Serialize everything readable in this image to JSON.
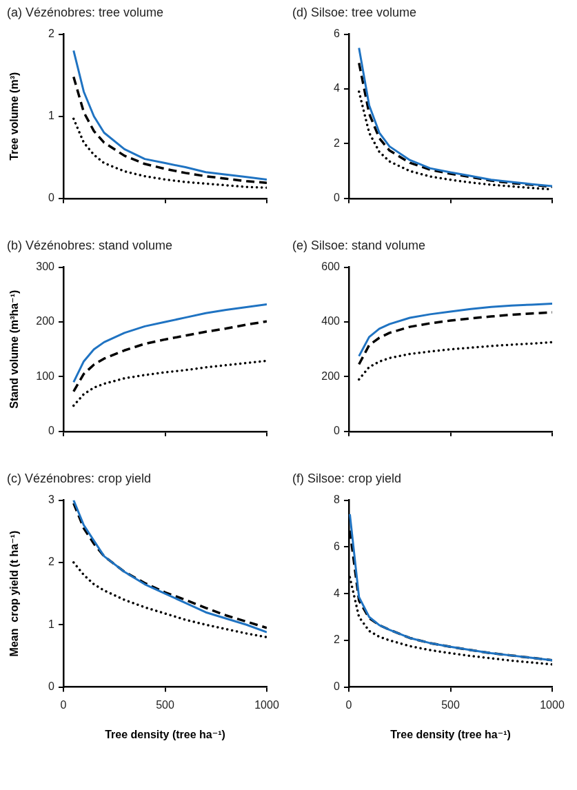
{
  "chart_data": [
    {
      "type": "line",
      "title": "(a) Vézénobres: tree volume",
      "ylabel": "Tree volume (m³)",
      "x": [
        50,
        100,
        150,
        200,
        300,
        400,
        500,
        600,
        700,
        800,
        900,
        1000
      ],
      "xlim": [
        0,
        1000
      ],
      "xticks": [
        {
          "value": 0,
          "label": null
        },
        {
          "value": 500,
          "label": null
        },
        {
          "value": 1000,
          "label": null
        }
      ],
      "ylim": [
        0,
        2
      ],
      "yticks": [
        0,
        1,
        2
      ],
      "tick_labels": "y",
      "grid": false,
      "legend": false,
      "series": [
        {
          "color": "#1f73c2",
          "line_style": "solid",
          "values": [
            1.8,
            1.3,
            1.0,
            0.8,
            0.6,
            0.48,
            0.43,
            0.38,
            0.32,
            0.29,
            0.26,
            0.23
          ]
        },
        {
          "color": "#000000",
          "line_style": "dashed",
          "values": [
            1.48,
            1.05,
            0.82,
            0.68,
            0.52,
            0.42,
            0.36,
            0.31,
            0.27,
            0.24,
            0.21,
            0.19
          ]
        },
        {
          "color": "#000000",
          "line_style": "dotted",
          "values": [
            0.97,
            0.68,
            0.53,
            0.43,
            0.33,
            0.27,
            0.23,
            0.2,
            0.18,
            0.16,
            0.14,
            0.13
          ]
        }
      ]
    },
    {
      "type": "line",
      "title": "(d) Silsoe: tree volume",
      "x": [
        50,
        100,
        150,
        200,
        300,
        400,
        500,
        600,
        700,
        800,
        900,
        1000
      ],
      "xlim": [
        0,
        1000
      ],
      "xticks": [
        {
          "value": 0,
          "label": null
        },
        {
          "value": 500,
          "label": null
        },
        {
          "value": 1000,
          "label": null
        }
      ],
      "ylim": [
        0,
        6
      ],
      "yticks": [
        0,
        2,
        4,
        6
      ],
      "tick_labels": "y",
      "grid": false,
      "legend": false,
      "series": [
        {
          "color": "#1f73c2",
          "line_style": "solid",
          "values": [
            5.5,
            3.4,
            2.4,
            1.9,
            1.4,
            1.1,
            0.95,
            0.82,
            0.68,
            0.6,
            0.52,
            0.45
          ]
        },
        {
          "color": "#000000",
          "line_style": "dashed",
          "values": [
            4.95,
            3.1,
            2.2,
            1.75,
            1.3,
            1.05,
            0.9,
            0.78,
            0.65,
            0.56,
            0.5,
            0.42
          ]
        },
        {
          "color": "#000000",
          "line_style": "dotted",
          "values": [
            3.9,
            2.4,
            1.7,
            1.35,
            1.0,
            0.8,
            0.68,
            0.58,
            0.5,
            0.44,
            0.38,
            0.33
          ]
        }
      ]
    },
    {
      "type": "line",
      "title": "(b) Vézénobres: stand volume",
      "ylabel": "Stand volume (m³ha⁻¹)",
      "x": [
        50,
        100,
        150,
        200,
        300,
        400,
        500,
        600,
        700,
        800,
        900,
        1000
      ],
      "xlim": [
        0,
        1000
      ],
      "xticks": [
        {
          "value": 0,
          "label": null
        },
        {
          "value": 500,
          "label": null
        },
        {
          "value": 1000,
          "label": null
        }
      ],
      "ylim": [
        0,
        300
      ],
      "yticks": [
        0,
        100,
        200,
        300
      ],
      "tick_labels": "y",
      "grid": false,
      "legend": false,
      "series": [
        {
          "color": "#1f73c2",
          "line_style": "solid",
          "values": [
            90,
            128,
            150,
            163,
            180,
            192,
            200,
            208,
            216,
            222,
            227,
            232
          ]
        },
        {
          "color": "#000000",
          "line_style": "dashed",
          "values": [
            73,
            105,
            122,
            133,
            148,
            160,
            168,
            175,
            182,
            188,
            195,
            201
          ]
        },
        {
          "color": "#000000",
          "line_style": "dotted",
          "values": [
            47,
            68,
            80,
            87,
            97,
            103,
            108,
            112,
            117,
            121,
            125,
            129
          ]
        }
      ]
    },
    {
      "type": "line",
      "title": "(e) Silsoe: stand volume",
      "x": [
        50,
        100,
        150,
        200,
        300,
        400,
        500,
        600,
        700,
        800,
        900,
        1000
      ],
      "xlim": [
        0,
        1000
      ],
      "xticks": [
        {
          "value": 0,
          "label": null
        },
        {
          "value": 500,
          "label": null
        },
        {
          "value": 1000,
          "label": null
        }
      ],
      "ylim": [
        0,
        600
      ],
      "yticks": [
        0,
        200,
        400,
        600
      ],
      "tick_labels": "y",
      "grid": false,
      "legend": false,
      "series": [
        {
          "color": "#1f73c2",
          "line_style": "solid",
          "values": [
            275,
            345,
            375,
            392,
            415,
            428,
            438,
            447,
            455,
            460,
            463,
            467
          ]
        },
        {
          "color": "#000000",
          "line_style": "dashed",
          "values": [
            245,
            315,
            342,
            360,
            382,
            395,
            405,
            413,
            420,
            426,
            431,
            435
          ]
        },
        {
          "color": "#000000",
          "line_style": "dotted",
          "values": [
            190,
            235,
            255,
            268,
            283,
            292,
            300,
            306,
            312,
            317,
            321,
            326
          ]
        }
      ]
    },
    {
      "type": "line",
      "title": "(c) Vézénobres: crop yield",
      "ylabel": "Mean  crop yield (t ha⁻¹)",
      "xlabel": "Tree density (tree ha⁻¹)",
      "x": [
        50,
        100,
        150,
        200,
        300,
        400,
        500,
        600,
        700,
        800,
        900,
        1000
      ],
      "xlim": [
        0,
        1000
      ],
      "xticks": [
        0,
        500,
        1000
      ],
      "ylim": [
        0,
        3
      ],
      "yticks": [
        0,
        1,
        2,
        3
      ],
      "grid": false,
      "legend": false,
      "series": [
        {
          "color": "#1f73c2",
          "line_style": "solid",
          "values": [
            3.0,
            2.6,
            2.35,
            2.1,
            1.85,
            1.65,
            1.5,
            1.35,
            1.2,
            1.1,
            1.0,
            0.88
          ]
        },
        {
          "color": "#000000",
          "line_style": "dashed",
          "values": [
            2.95,
            2.55,
            2.3,
            2.1,
            1.85,
            1.67,
            1.52,
            1.4,
            1.27,
            1.15,
            1.05,
            0.95
          ]
        },
        {
          "color": "#000000",
          "line_style": "dotted",
          "values": [
            2.0,
            1.8,
            1.65,
            1.55,
            1.4,
            1.28,
            1.18,
            1.08,
            1.0,
            0.93,
            0.86,
            0.8
          ]
        }
      ]
    },
    {
      "type": "line",
      "title": "(f) Silsoe: crop yield",
      "xlabel": "Tree density (tree ha⁻¹)",
      "x": [
        5,
        50,
        100,
        150,
        200,
        300,
        400,
        500,
        600,
        700,
        800,
        900,
        1000
      ],
      "xlim": [
        0,
        1000
      ],
      "xticks": [
        0,
        500,
        1000
      ],
      "ylim": [
        0,
        8
      ],
      "yticks": [
        0,
        2,
        4,
        6,
        8
      ],
      "grid": false,
      "legend": false,
      "series": [
        {
          "color": "#1f73c2",
          "line_style": "solid",
          "values": [
            7.4,
            3.85,
            3.0,
            2.65,
            2.45,
            2.1,
            1.88,
            1.72,
            1.58,
            1.45,
            1.35,
            1.25,
            1.15
          ]
        },
        {
          "color": "#000000",
          "line_style": "dashed",
          "values": [
            6.7,
            3.7,
            2.95,
            2.65,
            2.45,
            2.1,
            1.88,
            1.72,
            1.58,
            1.45,
            1.35,
            1.25,
            1.15
          ]
        },
        {
          "color": "#000000",
          "line_style": "dotted",
          "values": [
            4.7,
            3.0,
            2.4,
            2.15,
            2.0,
            1.75,
            1.58,
            1.45,
            1.33,
            1.23,
            1.13,
            1.05,
            0.97
          ]
        }
      ]
    }
  ]
}
